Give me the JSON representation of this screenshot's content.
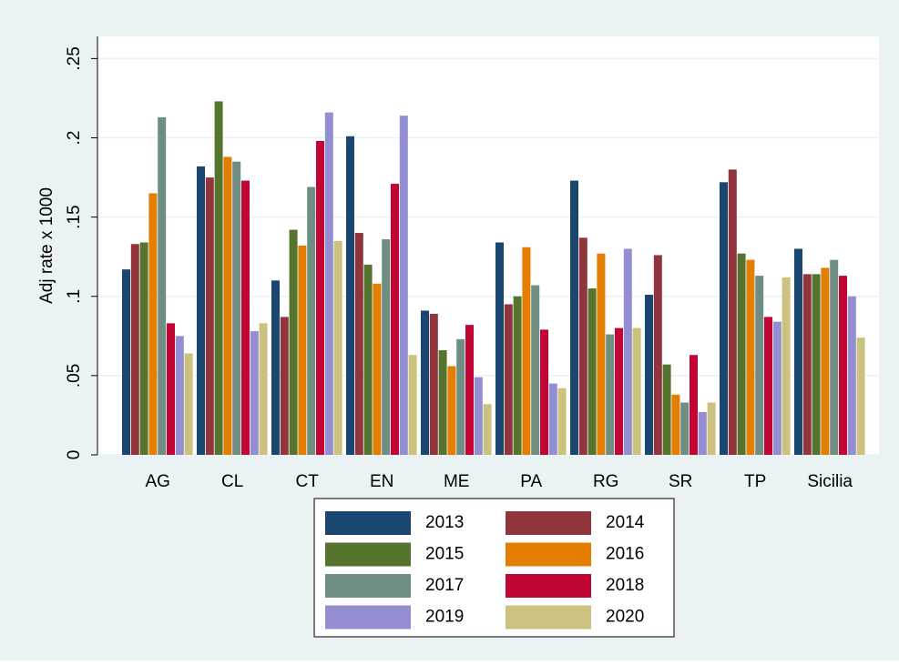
{
  "chart_data": {
    "type": "bar",
    "ylabel": "Adj rate x 1000",
    "categories": [
      "AG",
      "CL",
      "CT",
      "EN",
      "ME",
      "PA",
      "RG",
      "SR",
      "TP",
      "Sicilia"
    ],
    "series": [
      {
        "name": "2013",
        "color": "#1a476f",
        "values": [
          0.117,
          0.182,
          0.11,
          0.201,
          0.091,
          0.134,
          0.173,
          0.101,
          0.172,
          0.13
        ]
      },
      {
        "name": "2014",
        "color": "#90353b",
        "values": [
          0.133,
          0.175,
          0.087,
          0.14,
          0.089,
          0.095,
          0.137,
          0.126,
          0.18,
          0.114
        ]
      },
      {
        "name": "2015",
        "color": "#55752f",
        "values": [
          0.134,
          0.223,
          0.142,
          0.12,
          0.066,
          0.1,
          0.105,
          0.057,
          0.127,
          0.114
        ]
      },
      {
        "name": "2016",
        "color": "#e37e00",
        "values": [
          0.165,
          0.188,
          0.132,
          0.108,
          0.056,
          0.131,
          0.127,
          0.038,
          0.123,
          0.118
        ]
      },
      {
        "name": "2017",
        "color": "#6e8e84",
        "values": [
          0.213,
          0.185,
          0.169,
          0.136,
          0.073,
          0.107,
          0.076,
          0.033,
          0.113,
          0.123
        ]
      },
      {
        "name": "2018",
        "color": "#c10534",
        "values": [
          0.083,
          0.173,
          0.198,
          0.171,
          0.082,
          0.079,
          0.08,
          0.063,
          0.087,
          0.113
        ]
      },
      {
        "name": "2019",
        "color": "#938dd2",
        "values": [
          0.075,
          0.078,
          0.216,
          0.214,
          0.049,
          0.045,
          0.13,
          0.027,
          0.084,
          0.1
        ]
      },
      {
        "name": "2020",
        "color": "#cac27e",
        "values": [
          0.064,
          0.083,
          0.135,
          0.063,
          0.032,
          0.042,
          0.08,
          0.033,
          0.112,
          0.074
        ]
      }
    ],
    "ylim": [
      0,
      0.264
    ],
    "yticks": [
      0,
      {
        "value": 0.05,
        "label": ".05"
      },
      {
        "value": 0.1,
        "label": ".1"
      },
      {
        "value": 0.15,
        "label": ".15"
      },
      {
        "value": 0.2,
        "label": ".2"
      },
      {
        "value": 0.25,
        "label": ".25"
      }
    ],
    "grid": true,
    "legend": "bottom"
  }
}
